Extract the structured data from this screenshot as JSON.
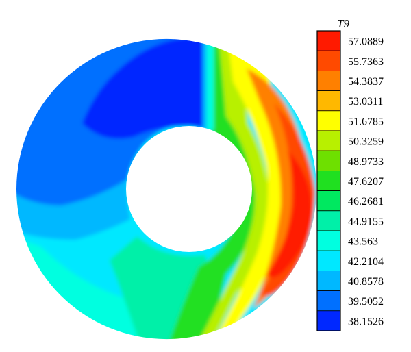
{
  "chart_data": {
    "type": "heatmap",
    "plot_kind": "annular contour plot",
    "legend_title": "T9",
    "legend_levels": [
      {
        "value": "57.0889",
        "color": "#ff1a00"
      },
      {
        "value": "55.7363",
        "color": "#ff4a00"
      },
      {
        "value": "54.3837",
        "color": "#ff8000"
      },
      {
        "value": "53.0311",
        "color": "#ffb800"
      },
      {
        "value": "51.6785",
        "color": "#ffff00"
      },
      {
        "value": "50.3259",
        "color": "#b8f000"
      },
      {
        "value": "48.9733",
        "color": "#6ee000"
      },
      {
        "value": "47.6207",
        "color": "#20e020"
      },
      {
        "value": "46.2681",
        "color": "#00e860"
      },
      {
        "value": "44.9155",
        "color": "#00f0a8"
      },
      {
        "value": "43.563",
        "color": "#00ffe0"
      },
      {
        "value": "42.2104",
        "color": "#00e8ff"
      },
      {
        "value": "40.8578",
        "color": "#00b8ff"
      },
      {
        "value": "39.5052",
        "color": "#0070ff"
      },
      {
        "value": "38.1526",
        "color": "#0028ff"
      }
    ]
  }
}
